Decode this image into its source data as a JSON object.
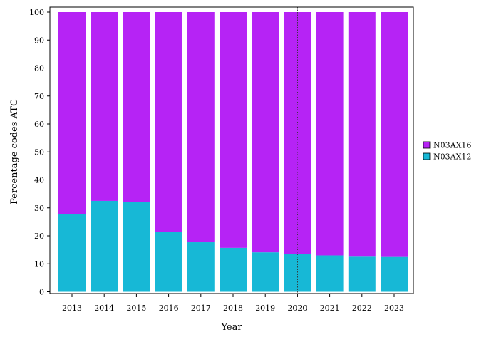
{
  "chart_data": {
    "type": "bar",
    "stacked": true,
    "categories": [
      "2013",
      "2014",
      "2015",
      "2016",
      "2017",
      "2018",
      "2019",
      "2020",
      "2021",
      "2022",
      "2023"
    ],
    "series": [
      {
        "name": "N03AX12",
        "color": "#17b8d6",
        "values": [
          27.8,
          32.5,
          32.2,
          21.5,
          17.7,
          15.7,
          14.1,
          13.4,
          13.0,
          12.8,
          12.7
        ]
      },
      {
        "name": "N03AX16",
        "color": "#b623f5",
        "values": [
          72.2,
          67.5,
          67.8,
          78.5,
          82.3,
          84.3,
          85.9,
          86.6,
          87.0,
          87.2,
          87.3
        ]
      }
    ],
    "xlabel": "Year",
    "ylabel": "Percentage codes ATC",
    "ylim": [
      0,
      100
    ],
    "yticks": [
      0,
      10,
      20,
      30,
      40,
      50,
      60,
      70,
      80,
      90,
      100
    ],
    "reference_line_x": "2020",
    "legend": {
      "position": "right",
      "entries": [
        {
          "label": "N03AX16",
          "color": "#b623f5"
        },
        {
          "label": "N03AX12",
          "color": "#17b8d6"
        }
      ]
    },
    "grid": false
  }
}
